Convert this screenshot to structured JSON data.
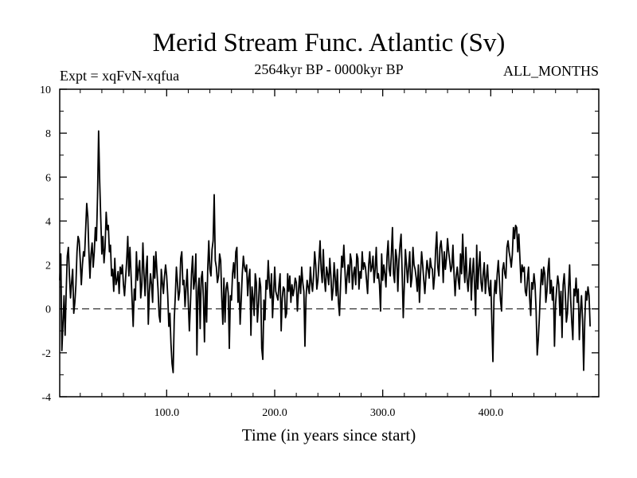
{
  "chart_data": {
    "type": "line",
    "title": "Merid Stream Func. Atlantic (Sv)",
    "subtitle_left": "Expt = xqFvN-xqfua",
    "subtitle_center": "2564kyr BP - 0000kyr BP",
    "subtitle_right": "ALL_MONTHS",
    "xlabel": "Time (in years since start)",
    "ylabel": "",
    "xlim": [
      1,
      500
    ],
    "ylim": [
      -4,
      10
    ],
    "x_ticks": [
      100,
      200,
      300,
      400
    ],
    "x_tick_labels": [
      "100.0",
      "200.0",
      "300.0",
      "400.0"
    ],
    "y_ticks": [
      -4,
      -2,
      0,
      2,
      4,
      6,
      8,
      10
    ],
    "y_tick_labels": [
      "-4",
      "-2",
      "0",
      "2",
      "4",
      "6",
      "8",
      "10"
    ],
    "reference_line": 0,
    "grid": false,
    "series": [
      {
        "name": "Merid Stream Func. Atlantic",
        "color": "#000000",
        "x_start": 1,
        "x_step": 1,
        "values": [
          1.3,
          2.5,
          -1.9,
          -0.7,
          0.6,
          -1.2,
          0.8,
          2.4,
          2.8,
          1.5,
          0.5,
          1.2,
          1.8,
          -0.2,
          0.3,
          1.1,
          2.6,
          3.3,
          3.1,
          2.2,
          1.1,
          2.0,
          2.6,
          2.4,
          3.6,
          4.8,
          4.2,
          2.6,
          1.4,
          2.5,
          3.0,
          1.9,
          2.6,
          3.7,
          3.1,
          5.1,
          8.1,
          5.8,
          4.1,
          2.5,
          3.3,
          2.1,
          2.8,
          4.4,
          3.6,
          3.8,
          2.6,
          2.9,
          1.5,
          1.8,
          0.8,
          2.3,
          1.1,
          1.3,
          1.7,
          0.7,
          1.9,
          1.6,
          2.0,
          1.1,
          0.6,
          1.4,
          2.2,
          3.3,
          1.5,
          2.8,
          1.6,
          0.4,
          -0.8,
          0.9,
          0.4,
          2.6,
          1.3,
          1.8,
          2.2,
          0.5,
          1.1,
          3.0,
          1.6,
          0.6,
          1.8,
          2.4,
          -0.7,
          0.8,
          1.6,
          1.1,
          0.3,
          2.4,
          1.4,
          2.6,
          1.7,
          0.9,
          -0.3,
          -0.6,
          1.8,
          1.2,
          0.7,
          1.5,
          2.0,
          1.5,
          0.6,
          -0.8,
          -0.2,
          -1.6,
          -2.5,
          -2.9,
          -0.5,
          0.6,
          1.9,
          1.2,
          0.4,
          0.8,
          2.3,
          2.6,
          1.1,
          1.3,
          0.1,
          1.0,
          1.8,
          0.3,
          -1.0,
          0.2,
          1.6,
          2.4,
          0.9,
          1.3,
          2.5,
          -2.1,
          0.8,
          1.4,
          -0.9,
          1.4,
          1.7,
          0.5,
          -1.5,
          1.2,
          -0.6,
          1.8,
          3.1,
          1.8,
          1.5,
          2.7,
          3.1,
          5.2,
          2.2,
          1.9,
          1.2,
          1.5,
          2.5,
          2.2,
          0.5,
          -0.7,
          1.4,
          -0.6,
          0.9,
          1.2,
          0.7,
          -1.8,
          0.6,
          0.4,
          1.6,
          2.1,
          1.4,
          2.6,
          2.8,
          0.3,
          1.2,
          -0.7,
          0.4,
          1.6,
          2.4,
          1.9,
          1.7,
          2.0,
          0.6,
          1.4,
          1.8,
          -1.2,
          1.0,
          0.5,
          -0.3,
          1.6,
          1.2,
          -0.6,
          0.2,
          1.4,
          1.0,
          -1.8,
          -2.3,
          0.4,
          -0.5,
          1.3,
          0.9,
          2.2,
          1.2,
          0.5,
          1.6,
          -0.4,
          0.7,
          1.9,
          0.8,
          0.6,
          0.4,
          1.1,
          1.6,
          -1.0,
          0.5,
          1.0,
          0.9,
          -0.4,
          -0.2,
          1.6,
          0.8,
          1.5,
          0.3,
          1.1,
          0.6,
          0.9,
          1.4,
          1.2,
          -0.1,
          0.8,
          1.5,
          0.7,
          1.9,
          1.2,
          0.8,
          -1.7,
          0.5,
          1.3,
          1.0,
          0.7,
          1.9,
          1.2,
          0.8,
          1.5,
          2.6,
          2.0,
          0.9,
          1.3,
          2.2,
          3.1,
          1.8,
          1.2,
          2.7,
          1.4,
          0.8,
          1.9,
          1.6,
          1.1,
          2.3,
          1.5,
          0.4,
          0.9,
          2.1,
          1.4,
          0.6,
          1.8,
          0.3,
          -0.3,
          1.1,
          2.4,
          1.9,
          2.9,
          1.8,
          0.7,
          1.5,
          2.0,
          1.2,
          2.5,
          2.2,
          0.9,
          1.6,
          1.9,
          1.1,
          2.5,
          2.3,
          0.9,
          1.7,
          1.4,
          2.6,
          1.8,
          2.1,
          1.9,
          1.3,
          0.7,
          2.0,
          2.6,
          1.7,
          1.9,
          2.4,
          1.2,
          1.8,
          2.8,
          1.4,
          1.6,
          1.1,
          -0.1,
          2.5,
          1.3,
          2.0,
          1.6,
          1.0,
          2.4,
          3.1,
          1.8,
          1.5,
          2.5,
          3.7,
          1.6,
          1.2,
          2.7,
          2.3,
          0.8,
          2.2,
          2.9,
          3.4,
          1.6,
          -0.4,
          1.1,
          2.7,
          2.0,
          1.2,
          1.9,
          2.6,
          1.0,
          1.4,
          2.8,
          2.0,
          1.8,
          1.4,
          0.8,
          2.0,
          0.3,
          1.6,
          2.6,
          2.0,
          1.3,
          0.7,
          1.5,
          2.2,
          1.8,
          1.4,
          2.3,
          1.9,
          1.8,
          0.9,
          1.5,
          2.7,
          3.5,
          1.9,
          1.5,
          2.8,
          3.1,
          2.5,
          1.2,
          2.6,
          1.8,
          2.3,
          3.2,
          2.6,
          2.2,
          1.7,
          1.9,
          2.9,
          1.6,
          0.6,
          1.5,
          1.9,
          1.3,
          0.9,
          2.5,
          1.6,
          3.4,
          2.0,
          1.2,
          2.8,
          1.4,
          0.8,
          1.6,
          2.3,
          0.4,
          1.6,
          2.3,
          1.1,
          -0.3,
          2.9,
          0.9,
          1.9,
          2.6,
          1.2,
          0.8,
          1.6,
          2.1,
          0.7,
          1.4,
          2.0,
          1.0,
          0.6,
          1.3,
          -0.6,
          -2.4,
          0.5,
          1.3,
          0.7,
          1.6,
          2.2,
          1.3,
          0.4,
          -0.1,
          1.8,
          2.1,
          1.6,
          1.4,
          2.8,
          3.1,
          2.6,
          2.3,
          1.9,
          2.5,
          3.7,
          3.2,
          3.8,
          3.7,
          2.6,
          3.4,
          2.3,
          1.2,
          2.0,
          1.7,
          1.9,
          0.8,
          0.6,
          1.4,
          1.9,
          0.5,
          -0.3,
          1.2,
          0.9,
          1.6,
          1.1,
          -0.1,
          -2.1,
          -1.4,
          -0.4,
          0.9,
          1.8,
          1.1,
          1.9,
          1.6,
          0.3,
          0.8,
          1.8,
          2.3,
          0.7,
          1.3,
          0.4,
          1.0,
          -1.7,
          0.2,
          0.9,
          1.5,
          1.1,
          -0.3,
          0.8,
          -1.3,
          1.1,
          1.6,
          0.7,
          -0.6,
          -0.2,
          0.9,
          2.0,
          0.4,
          -0.6,
          -1.4,
          0.9,
          0.6,
          1.4,
          0.3,
          0.9,
          -1.4,
          -0.1,
          0.6,
          -0.5,
          -2.8,
          -0.6,
          0.8,
          0.4,
          1.0,
          0.6,
          -0.8
        ]
      }
    ]
  }
}
